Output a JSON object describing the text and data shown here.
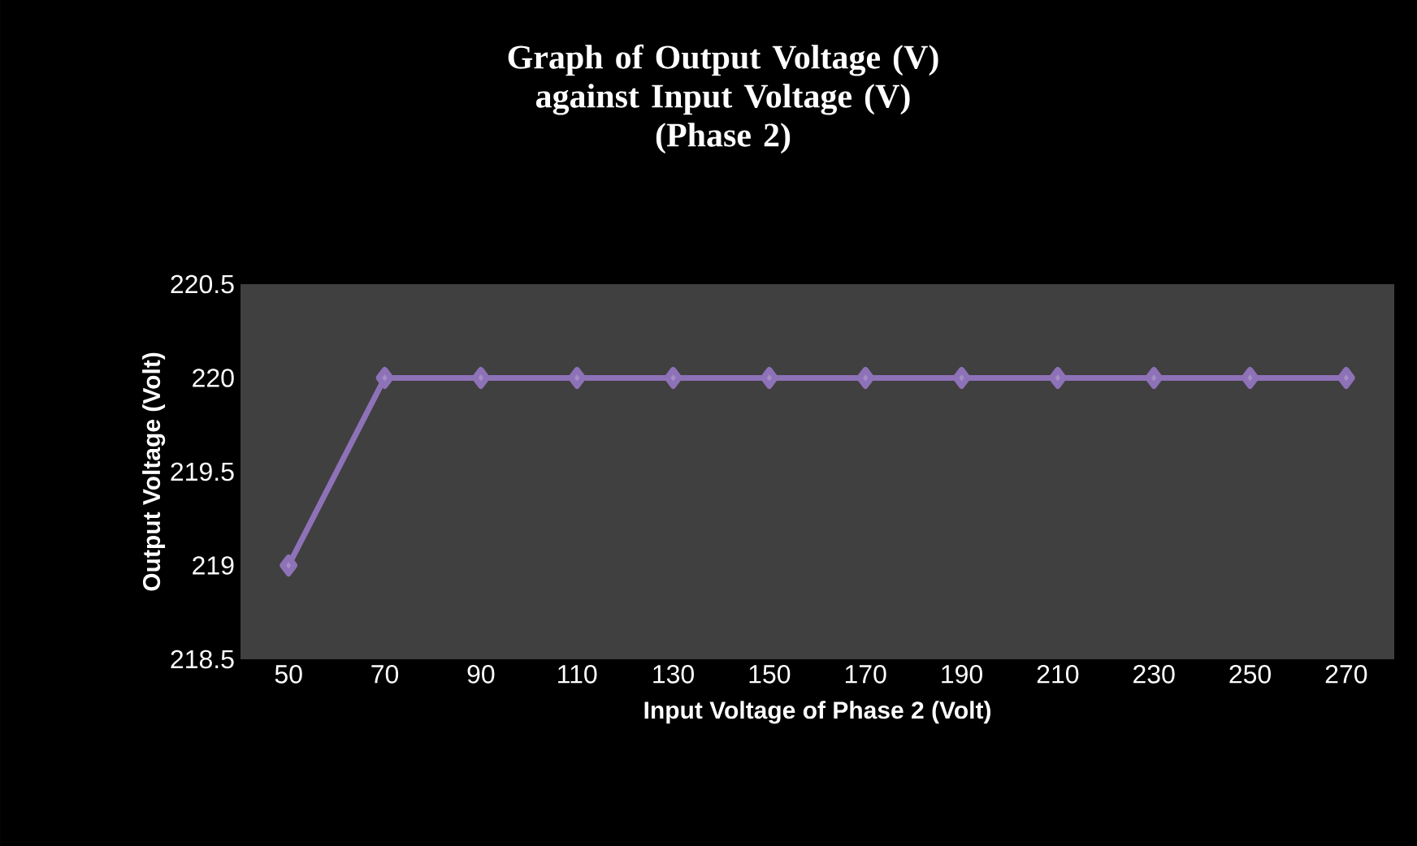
{
  "chart_data": {
    "type": "line",
    "title": "Graph of Output Voltage (V) against Input Voltage (V)",
    "subtitle": "(Phase 2)",
    "xlabel": "Input Voltage of Phase 2 (Volt)",
    "ylabel": "Output Voltage (Volt)",
    "categories": [
      "50",
      "70",
      "90",
      "110",
      "130",
      "150",
      "170",
      "190",
      "210",
      "230",
      "250",
      "270"
    ],
    "series": [
      {
        "color": "#8e72b8",
        "values": [
          219,
          220,
          220,
          220,
          220,
          220,
          220,
          220,
          220,
          220,
          220,
          220
        ]
      }
    ],
    "ylim": [
      218.5,
      220.5
    ],
    "yticks": [
      218.5,
      219,
      219.5,
      220,
      220.5
    ],
    "marker": "diamond",
    "line_style": "solid"
  }
}
